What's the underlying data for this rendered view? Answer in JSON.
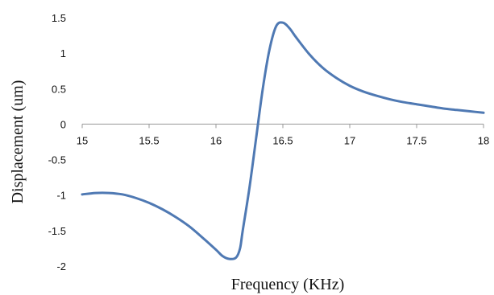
{
  "chart_data": {
    "type": "line",
    "title": "",
    "xlabel": "Frequency (KHz)",
    "ylabel": "Displacement (um)",
    "xlim": [
      15,
      18
    ],
    "ylim": [
      -2,
      1.5
    ],
    "x_ticks": [
      "15",
      "15.5",
      "16",
      "16.5",
      "17",
      "17.5",
      "18"
    ],
    "y_ticks": [
      "-2",
      "-1.5",
      "-1",
      "-0.5",
      "0",
      "0.5",
      "1",
      "1.5"
    ],
    "grid": false,
    "legend": "none",
    "series": [
      {
        "color": "#4f79b3",
        "x": [
          15.0,
          15.1,
          15.2,
          15.3,
          15.4,
          15.5,
          15.6,
          15.7,
          15.8,
          15.9,
          16.0,
          16.05,
          16.1,
          16.15,
          16.18,
          16.2,
          16.25,
          16.3,
          16.35,
          16.4,
          16.45,
          16.5,
          16.55,
          16.6,
          16.7,
          16.8,
          16.9,
          17.0,
          17.1,
          17.2,
          17.3,
          17.4,
          17.5,
          17.6,
          17.7,
          17.8,
          17.9,
          18.0
        ],
        "y": [
          -0.99,
          -0.97,
          -0.97,
          -0.99,
          -1.04,
          -1.11,
          -1.2,
          -1.31,
          -1.44,
          -1.6,
          -1.77,
          -1.86,
          -1.9,
          -1.88,
          -1.75,
          -1.5,
          -0.9,
          -0.2,
          0.5,
          1.05,
          1.38,
          1.43,
          1.35,
          1.22,
          0.98,
          0.79,
          0.65,
          0.54,
          0.46,
          0.4,
          0.35,
          0.31,
          0.28,
          0.25,
          0.22,
          0.2,
          0.18,
          0.16
        ]
      }
    ]
  }
}
